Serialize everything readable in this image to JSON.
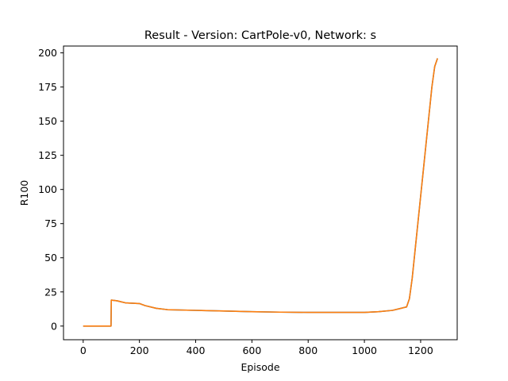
{
  "chart_data": {
    "type": "line",
    "title": "Result - Version: CartPole-v0, Network: s",
    "xlabel": "Episode",
    "ylabel": "R100",
    "xlim": [
      -70,
      1330
    ],
    "ylim": [
      -10,
      205
    ],
    "xticks": [
      0,
      200,
      400,
      600,
      800,
      1000,
      1200
    ],
    "yticks": [
      0,
      25,
      50,
      75,
      100,
      125,
      150,
      175,
      200
    ],
    "grid": false,
    "series": [
      {
        "color": "#1f77b4",
        "x": [
          0,
          97,
          99,
          100,
          120,
          150,
          200,
          220,
          260,
          300,
          400,
          500,
          600,
          700,
          800,
          900,
          1000,
          1050,
          1100,
          1130,
          1150,
          1160,
          1170,
          1180,
          1190,
          1200,
          1210,
          1220,
          1230,
          1240,
          1250,
          1260
        ],
        "y": [
          0,
          0,
          0,
          19,
          18.5,
          17,
          16.5,
          15,
          13,
          12,
          11.5,
          11,
          10.5,
          10.2,
          10,
          10,
          10,
          10.5,
          11.5,
          13,
          14,
          20,
          35,
          55,
          75,
          95,
          115,
          135,
          155,
          175,
          190,
          196
        ]
      },
      {
        "color": "#ff7f0e",
        "x": [
          0,
          97,
          99,
          100,
          120,
          150,
          200,
          220,
          260,
          300,
          400,
          500,
          600,
          700,
          800,
          900,
          1000,
          1050,
          1100,
          1130,
          1150,
          1160,
          1170,
          1180,
          1190,
          1200,
          1210,
          1220,
          1230,
          1240,
          1250,
          1260
        ],
        "y": [
          0,
          0,
          0,
          19,
          18.5,
          17,
          16.5,
          15,
          13,
          12,
          11.5,
          11,
          10.5,
          10.2,
          10,
          10,
          10,
          10.5,
          11.5,
          13,
          14,
          20,
          35,
          55,
          75,
          95,
          115,
          135,
          155,
          175,
          190,
          196
        ]
      }
    ]
  }
}
